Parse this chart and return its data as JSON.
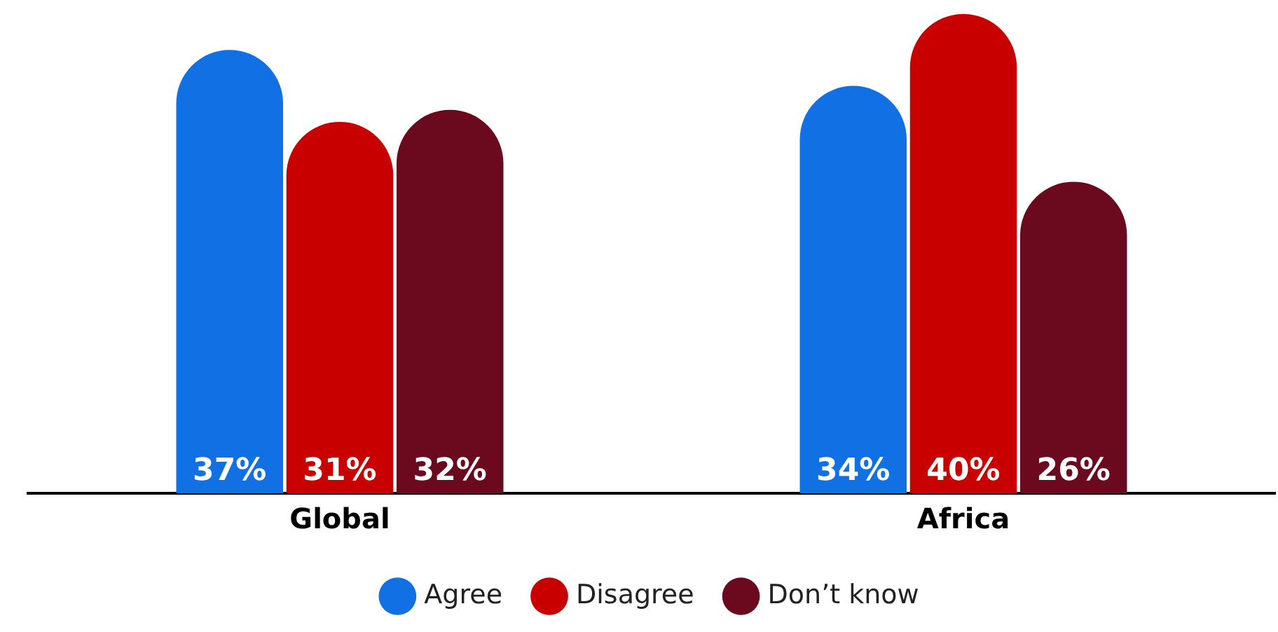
{
  "chart_data": {
    "type": "bar",
    "categories": [
      "Global",
      "Africa"
    ],
    "series": [
      {
        "name": "Agree",
        "color": "#1170e4",
        "values": [
          37,
          34
        ],
        "value_labels": [
          "37%",
          "34%"
        ]
      },
      {
        "name": "Disagree",
        "color": "#c80000",
        "values": [
          31,
          40
        ],
        "value_labels": [
          "31%",
          "40%"
        ]
      },
      {
        "name": "Don’t know",
        "color": "#6b0a1e",
        "values": [
          32,
          26
        ],
        "value_labels": [
          "32%",
          "26%"
        ]
      }
    ],
    "legend": "bottom",
    "grid": false
  }
}
